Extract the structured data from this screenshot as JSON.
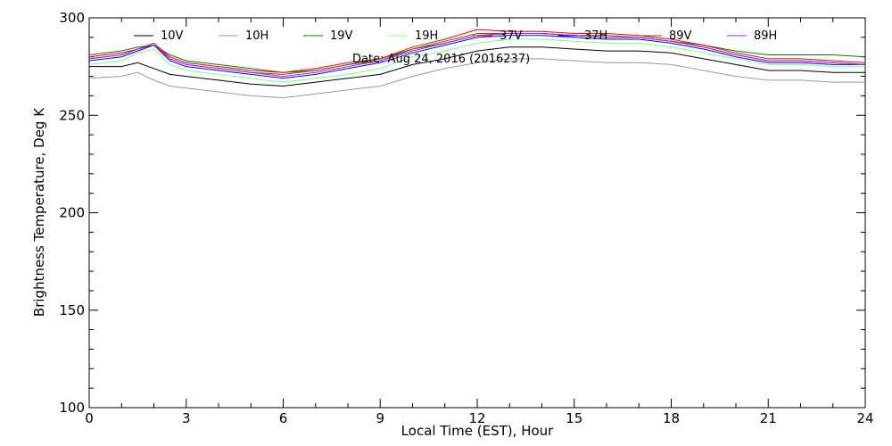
{
  "chart_data": {
    "type": "line",
    "title": "",
    "annotation": "Date: Aug 24, 2016 (2016237)",
    "xlabel": "Local Time (EST), Hour",
    "ylabel": "Brightness Temperature, Deg K",
    "xlim": [
      0,
      24
    ],
    "ylim": [
      100,
      300
    ],
    "x_ticks": [
      "0",
      "3",
      "6",
      "9",
      "12",
      "15",
      "18",
      "21",
      "24"
    ],
    "y_ticks": [
      "100",
      "150",
      "200",
      "250",
      "300"
    ],
    "grid": false,
    "legend_position": "top",
    "x": [
      0,
      1,
      1.5,
      2,
      2.5,
      3,
      4,
      5,
      6,
      7,
      8,
      9,
      10,
      11,
      12,
      13,
      14,
      15,
      16,
      17,
      18,
      19,
      20,
      21,
      22,
      23,
      24
    ],
    "series": [
      {
        "name": "10V",
        "color": "#000000",
        "values": [
          275,
          275,
          277,
          274,
          271,
          270,
          268,
          266,
          265,
          267,
          269,
          271,
          276,
          279,
          283,
          285,
          285,
          284,
          283,
          283,
          282,
          279,
          276,
          273,
          273,
          272,
          272
        ]
      },
      {
        "name": "10H",
        "color": "#999999",
        "values": [
          269,
          270,
          272,
          268,
          265,
          264,
          262,
          260,
          259,
          261,
          263,
          265,
          270,
          274,
          277,
          279,
          279,
          278,
          277,
          277,
          276,
          273,
          270,
          268,
          268,
          267,
          267
        ]
      },
      {
        "name": "19V",
        "color": "#008000",
        "values": [
          281,
          283,
          285,
          286,
          281,
          278,
          276,
          274,
          272,
          273,
          276,
          279,
          284,
          287,
          291,
          292,
          292,
          291,
          290,
          290,
          288,
          286,
          283,
          281,
          281,
          281,
          280
        ]
      },
      {
        "name": "19H",
        "color": "#7fff7f",
        "values": [
          276,
          278,
          282,
          284,
          276,
          273,
          271,
          269,
          267,
          269,
          271,
          274,
          280,
          283,
          287,
          289,
          289,
          288,
          287,
          287,
          285,
          282,
          279,
          276,
          276,
          275,
          275
        ]
      },
      {
        "name": "37V",
        "color": "#ff0000",
        "values": [
          280,
          282,
          284,
          287,
          280,
          277,
          275,
          273,
          272,
          274,
          277,
          279,
          285,
          289,
          294,
          293,
          293,
          292,
          292,
          291,
          289,
          286,
          282,
          279,
          279,
          278,
          277
        ]
      },
      {
        "name": "37H",
        "color": "#0000ff",
        "values": [
          278,
          280,
          283,
          286,
          278,
          275,
          273,
          271,
          269,
          271,
          274,
          277,
          282,
          286,
          290,
          291,
          291,
          290,
          289,
          289,
          287,
          284,
          280,
          277,
          277,
          276,
          276
        ]
      },
      {
        "name": "89V",
        "color": "#8b4513",
        "values": [
          279,
          281,
          284,
          286,
          279,
          276,
          274,
          272,
          271,
          273,
          276,
          278,
          284,
          288,
          292,
          292,
          292,
          291,
          291,
          290,
          288,
          285,
          281,
          278,
          278,
          277,
          276
        ]
      },
      {
        "name": "89H",
        "color": "#a020f0",
        "values": [
          279,
          281,
          284,
          287,
          279,
          276,
          274,
          272,
          270,
          272,
          275,
          278,
          283,
          287,
          291,
          292,
          292,
          291,
          290,
          290,
          288,
          285,
          281,
          278,
          278,
          277,
          276
        ]
      }
    ]
  }
}
